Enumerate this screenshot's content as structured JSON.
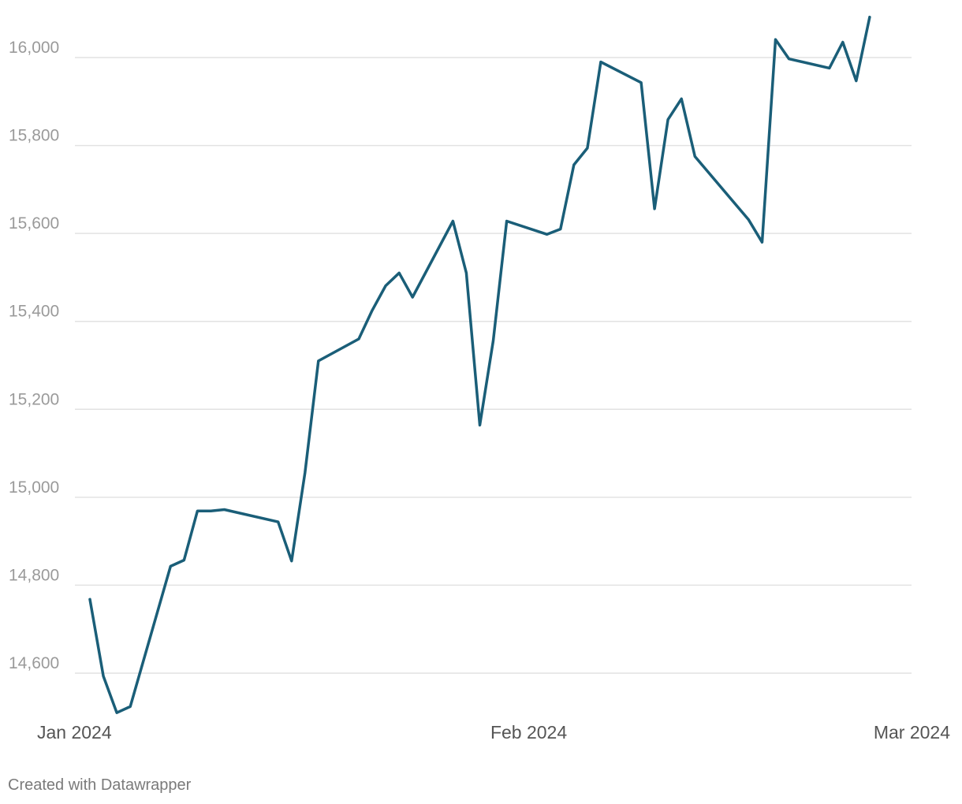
{
  "credit": "Created with Datawrapper",
  "colors": {
    "line": "#1a5e78",
    "grid": "#e2e2e2",
    "ytick": "#9a9a9a",
    "xtick": "#555555"
  },
  "chart_data": {
    "type": "line",
    "grid": "horizontal",
    "ylim": [
      14500,
      16100
    ],
    "yticks": [
      14600,
      14800,
      15000,
      15200,
      15400,
      15600,
      15800,
      16000
    ],
    "ytick_labels": [
      "14,600",
      "14,800",
      "15,000",
      "15,200",
      "15,400",
      "15,600",
      "15,800",
      "16,000"
    ],
    "xlim": [
      "2024-01-01",
      "2024-03-01"
    ],
    "xticks": [
      "2024-01-01",
      "2024-02-01",
      "2024-03-01"
    ],
    "xtick_labels": [
      "Jan 2024",
      "Feb 2024",
      "Mar 2024"
    ],
    "series": [
      {
        "points": [
          [
            "2024-01-01",
            14768
          ],
          [
            "2024-01-02",
            14593
          ],
          [
            "2024-01-03",
            14510
          ],
          [
            "2024-01-04",
            14524
          ],
          [
            "2024-01-07",
            14843
          ],
          [
            "2024-01-08",
            14857
          ],
          [
            "2024-01-09",
            14969
          ],
          [
            "2024-01-10",
            14969
          ],
          [
            "2024-01-11",
            14972
          ],
          [
            "2024-01-15",
            14944
          ],
          [
            "2024-01-16",
            14855
          ],
          [
            "2024-01-17",
            15056
          ],
          [
            "2024-01-18",
            15310
          ],
          [
            "2024-01-21",
            15360
          ],
          [
            "2024-01-22",
            15425
          ],
          [
            "2024-01-23",
            15481
          ],
          [
            "2024-01-24",
            15510
          ],
          [
            "2024-01-25",
            15455
          ],
          [
            "2024-01-28",
            15628
          ],
          [
            "2024-01-29",
            15510
          ],
          [
            "2024-01-30",
            15164
          ],
          [
            "2024-01-31",
            15356
          ],
          [
            "2024-02-01",
            15628
          ],
          [
            "2024-02-04",
            15598
          ],
          [
            "2024-02-05",
            15610
          ],
          [
            "2024-02-06",
            15756
          ],
          [
            "2024-02-07",
            15794
          ],
          [
            "2024-02-08",
            15990
          ],
          [
            "2024-02-11",
            15943
          ],
          [
            "2024-02-12",
            15656
          ],
          [
            "2024-02-13",
            15859
          ],
          [
            "2024-02-14",
            15906
          ],
          [
            "2024-02-15",
            15775
          ],
          [
            "2024-02-19",
            15631
          ],
          [
            "2024-02-20",
            15580
          ],
          [
            "2024-02-21",
            16041
          ],
          [
            "2024-02-22",
            15997
          ],
          [
            "2024-02-25",
            15976
          ],
          [
            "2024-02-26",
            16035
          ],
          [
            "2024-02-27",
            15947
          ],
          [
            "2024-02-28",
            16092
          ]
        ]
      }
    ]
  }
}
